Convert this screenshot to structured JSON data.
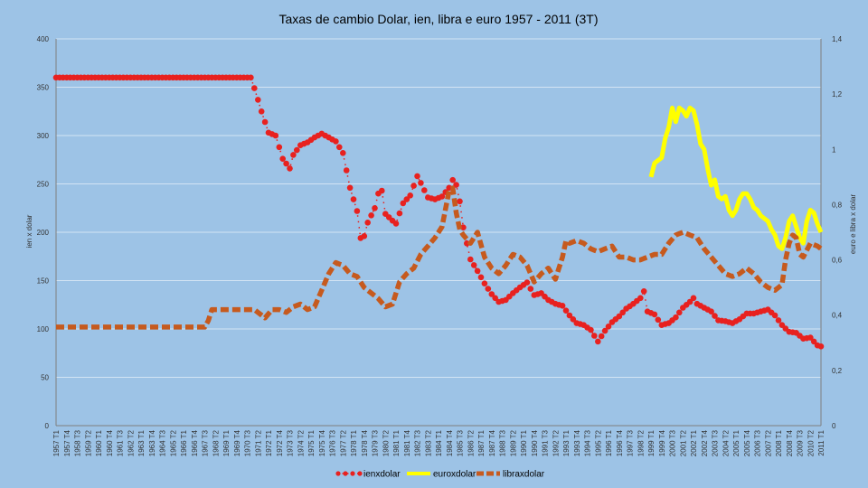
{
  "chart_data": {
    "type": "line",
    "title": "Taxas de cambio Dolar, ien, libra e euro 1957 - 2011 (3T)",
    "ylabel_left": "ien x dolar",
    "ylabel_right": "euro e libra x dolar",
    "ylim_left": [
      0,
      400
    ],
    "ylim_right": [
      0,
      1.4
    ],
    "yticks_left": [
      "0",
      "50",
      "100",
      "150",
      "200",
      "250",
      "300",
      "350",
      "400"
    ],
    "yticks_right": [
      "0",
      "0,2",
      "0,4",
      "0,6",
      "0,8",
      "1",
      "1,2",
      "1,4"
    ],
    "grid": "horizontal",
    "legend": "bottom",
    "x_start": "1957 T1",
    "x_end": "2011 T1",
    "x_label_every": 3,
    "series": [
      {
        "name": "ienxdolar",
        "axis": "left",
        "color": "#e8211f",
        "style": "dotted-markers",
        "points": [
          [
            "1957 T1",
            360
          ],
          [
            "1970 T4",
            360
          ],
          [
            "1971 T1",
            349
          ],
          [
            "1971 T3",
            325
          ],
          [
            "1972 T1",
            303
          ],
          [
            "1972 T3",
            300
          ],
          [
            "1973 T1",
            276
          ],
          [
            "1973 T3",
            266
          ],
          [
            "1973 T4",
            280
          ],
          [
            "1974 T2",
            290
          ],
          [
            "1974 T4",
            293
          ],
          [
            "1975 T2",
            298
          ],
          [
            "1975 T4",
            302
          ],
          [
            "1976 T2",
            298
          ],
          [
            "1976 T4",
            294
          ],
          [
            "1977 T2",
            282
          ],
          [
            "1977 T4",
            246
          ],
          [
            "1978 T2",
            222
          ],
          [
            "1978 T3",
            194
          ],
          [
            "1978 T4",
            196
          ],
          [
            "1979 T1",
            210
          ],
          [
            "1979 T3",
            225
          ],
          [
            "1979 T4",
            240
          ],
          [
            "1980 T1",
            243
          ],
          [
            "1980 T2",
            219
          ],
          [
            "1980 T4",
            212
          ],
          [
            "1981 T1",
            209
          ],
          [
            "1981 T3",
            230
          ],
          [
            "1982 T1",
            238
          ],
          [
            "1982 T3",
            258
          ],
          [
            "1982 T4",
            251
          ],
          [
            "1983 T2",
            236
          ],
          [
            "1983 T4",
            234
          ],
          [
            "1984 T2",
            237
          ],
          [
            "1984 T4",
            246
          ],
          [
            "1985 T1",
            254
          ],
          [
            "1985 T2",
            249
          ],
          [
            "1985 T3",
            232
          ],
          [
            "1985 T4",
            205
          ],
          [
            "1986 T2",
            172
          ],
          [
            "1986 T4",
            160
          ],
          [
            "1987 T2",
            147
          ],
          [
            "1987 T4",
            136
          ],
          [
            "1988 T2",
            128
          ],
          [
            "1988 T4",
            130
          ],
          [
            "1989 T2",
            137
          ],
          [
            "1989 T4",
            143
          ],
          [
            "1990 T2",
            148
          ],
          [
            "1990 T4",
            135
          ],
          [
            "1991 T2",
            137
          ],
          [
            "1991 T4",
            130
          ],
          [
            "1992 T2",
            126
          ],
          [
            "1992 T4",
            124
          ],
          [
            "1993 T2",
            114
          ],
          [
            "1993 T4",
            106
          ],
          [
            "1994 T2",
            104
          ],
          [
            "1994 T4",
            99
          ],
          [
            "1995 T2",
            87
          ],
          [
            "1995 T4",
            98
          ],
          [
            "1996 T2",
            107
          ],
          [
            "1996 T4",
            113
          ],
          [
            "1997 T2",
            121
          ],
          [
            "1997 T4",
            126
          ],
          [
            "1998 T2",
            132
          ],
          [
            "1998 T3",
            139
          ],
          [
            "1998 T4",
            118
          ],
          [
            "1999 T2",
            115
          ],
          [
            "1999 T4",
            104
          ],
          [
            "2000 T2",
            106
          ],
          [
            "2000 T4",
            112
          ],
          [
            "2001 T2",
            122
          ],
          [
            "2001 T4",
            128
          ],
          [
            "2002 T1",
            132
          ],
          [
            "2002 T2",
            126
          ],
          [
            "2002 T4",
            122
          ],
          [
            "2003 T2",
            118
          ],
          [
            "2003 T4",
            109
          ],
          [
            "2004 T2",
            108
          ],
          [
            "2004 T4",
            106
          ],
          [
            "2005 T2",
            110
          ],
          [
            "2005 T4",
            116
          ],
          [
            "2006 T2",
            116
          ],
          [
            "2006 T4",
            118
          ],
          [
            "2007 T2",
            120
          ],
          [
            "2007 T4",
            114
          ],
          [
            "2008 T2",
            104
          ],
          [
            "2008 T4",
            97
          ],
          [
            "2009 T2",
            96
          ],
          [
            "2009 T4",
            90
          ],
          [
            "2010 T2",
            91
          ],
          [
            "2010 T4",
            83
          ],
          [
            "2011 T1",
            82
          ]
        ]
      },
      {
        "name": "euroxdolar",
        "axis": "right",
        "color": "#ffff00",
        "style": "solid-thick",
        "points": [
          [
            "1999 T1",
            0.9
          ],
          [
            "1999 T2",
            0.95
          ],
          [
            "1999 T3",
            0.96
          ],
          [
            "1999 T4",
            0.97
          ],
          [
            "2000 T1",
            1.04
          ],
          [
            "2000 T2",
            1.08
          ],
          [
            "2000 T3",
            1.15
          ],
          [
            "2000 T4",
            1.1
          ],
          [
            "2001 T1",
            1.15
          ],
          [
            "2001 T2",
            1.14
          ],
          [
            "2001 T3",
            1.12
          ],
          [
            "2001 T4",
            1.15
          ],
          [
            "2002 T1",
            1.14
          ],
          [
            "2002 T2",
            1.09
          ],
          [
            "2002 T3",
            1.02
          ],
          [
            "2002 T4",
            1.0
          ],
          [
            "2003 T1",
            0.93
          ],
          [
            "2003 T2",
            0.87
          ],
          [
            "2003 T3",
            0.89
          ],
          [
            "2003 T4",
            0.83
          ],
          [
            "2004 T1",
            0.82
          ],
          [
            "2004 T2",
            0.83
          ],
          [
            "2004 T3",
            0.78
          ],
          [
            "2004 T4",
            0.76
          ],
          [
            "2005 T1",
            0.78
          ],
          [
            "2005 T2",
            0.82
          ],
          [
            "2005 T3",
            0.84
          ],
          [
            "2005 T4",
            0.84
          ],
          [
            "2006 T1",
            0.82
          ],
          [
            "2006 T2",
            0.79
          ],
          [
            "2006 T3",
            0.78
          ],
          [
            "2006 T4",
            0.76
          ],
          [
            "2007 T1",
            0.75
          ],
          [
            "2007 T2",
            0.74
          ],
          [
            "2007 T3",
            0.71
          ],
          [
            "2007 T4",
            0.69
          ],
          [
            "2008 T1",
            0.65
          ],
          [
            "2008 T2",
            0.64
          ],
          [
            "2008 T3",
            0.68
          ],
          [
            "2008 T4",
            0.74
          ],
          [
            "2009 T1",
            0.76
          ],
          [
            "2009 T2",
            0.72
          ],
          [
            "2009 T3",
            0.68
          ],
          [
            "2009 T4",
            0.66
          ],
          [
            "2010 T1",
            0.74
          ],
          [
            "2010 T2",
            0.78
          ],
          [
            "2010 T3",
            0.77
          ],
          [
            "2010 T4",
            0.73
          ],
          [
            "2011 T1",
            0.7
          ]
        ]
      },
      {
        "name": "libraxdolar",
        "axis": "right",
        "color": "#c65a1e",
        "style": "dashed-thick",
        "points": [
          [
            "1957 T1",
            0.357
          ],
          [
            "1967 T3",
            0.357
          ],
          [
            "1967 T4",
            0.38
          ],
          [
            "1968 T1",
            0.42
          ],
          [
            "1971 T1",
            0.42
          ],
          [
            "1971 T2",
            0.41
          ],
          [
            "1971 T4",
            0.39
          ],
          [
            "1972 T2",
            0.42
          ],
          [
            "1972 T4",
            0.42
          ],
          [
            "1973 T2",
            0.41
          ],
          [
            "1973 T4",
            0.43
          ],
          [
            "1974 T2",
            0.44
          ],
          [
            "1974 T4",
            0.42
          ],
          [
            "1975 T2",
            0.43
          ],
          [
            "1975 T4",
            0.49
          ],
          [
            "1976 T2",
            0.55
          ],
          [
            "1976 T4",
            0.59
          ],
          [
            "1977 T2",
            0.58
          ],
          [
            "1977 T4",
            0.55
          ],
          [
            "1978 T2",
            0.54
          ],
          [
            "1978 T4",
            0.5
          ],
          [
            "1979 T2",
            0.48
          ],
          [
            "1979 T4",
            0.46
          ],
          [
            "1980 T2",
            0.43
          ],
          [
            "1980 T4",
            0.44
          ],
          [
            "1981 T2",
            0.52
          ],
          [
            "1981 T4",
            0.55
          ],
          [
            "1982 T2",
            0.57
          ],
          [
            "1982 T4",
            0.62
          ],
          [
            "1983 T2",
            0.65
          ],
          [
            "1983 T4",
            0.68
          ],
          [
            "1984 T2",
            0.72
          ],
          [
            "1984 T4",
            0.85
          ],
          [
            "1985 T1",
            0.86
          ],
          [
            "1985 T2",
            0.77
          ],
          [
            "1985 T3",
            0.71
          ],
          [
            "1985 T4",
            0.69
          ],
          [
            "1986 T2",
            0.66
          ],
          [
            "1986 T4",
            0.7
          ],
          [
            "1987 T2",
            0.61
          ],
          [
            "1987 T4",
            0.57
          ],
          [
            "1988 T2",
            0.55
          ],
          [
            "1988 T4",
            0.58
          ],
          [
            "1989 T2",
            0.62
          ],
          [
            "1989 T4",
            0.61
          ],
          [
            "1990 T2",
            0.58
          ],
          [
            "1990 T4",
            0.52
          ],
          [
            "1991 T2",
            0.55
          ],
          [
            "1991 T4",
            0.57
          ],
          [
            "1992 T2",
            0.53
          ],
          [
            "1992 T4",
            0.61
          ],
          [
            "1993 T1",
            0.67
          ],
          [
            "1993 T2",
            0.66
          ],
          [
            "1993 T4",
            0.67
          ],
          [
            "1994 T2",
            0.66
          ],
          [
            "1994 T4",
            0.64
          ],
          [
            "1995 T2",
            0.63
          ],
          [
            "1995 T4",
            0.64
          ],
          [
            "1996 T2",
            0.65
          ],
          [
            "1996 T4",
            0.61
          ],
          [
            "1997 T2",
            0.61
          ],
          [
            "1997 T4",
            0.6
          ],
          [
            "1998 T2",
            0.6
          ],
          [
            "1998 T4",
            0.61
          ],
          [
            "1999 T2",
            0.62
          ],
          [
            "1999 T4",
            0.62
          ],
          [
            "2000 T2",
            0.66
          ],
          [
            "2000 T4",
            0.69
          ],
          [
            "2001 T2",
            0.7
          ],
          [
            "2001 T4",
            0.69
          ],
          [
            "2002 T2",
            0.68
          ],
          [
            "2002 T4",
            0.64
          ],
          [
            "2003 T2",
            0.61
          ],
          [
            "2003 T4",
            0.58
          ],
          [
            "2004 T2",
            0.55
          ],
          [
            "2004 T4",
            0.54
          ],
          [
            "2005 T2",
            0.55
          ],
          [
            "2005 T4",
            0.57
          ],
          [
            "2006 T2",
            0.55
          ],
          [
            "2006 T4",
            0.52
          ],
          [
            "2007 T2",
            0.5
          ],
          [
            "2007 T4",
            0.49
          ],
          [
            "2008 T2",
            0.51
          ],
          [
            "2008 T3",
            0.6
          ],
          [
            "2008 T4",
            0.66
          ],
          [
            "2009 T1",
            0.69
          ],
          [
            "2009 T2",
            0.68
          ],
          [
            "2009 T3",
            0.62
          ],
          [
            "2009 T4",
            0.61
          ],
          [
            "2010 T2",
            0.66
          ],
          [
            "2010 T4",
            0.65
          ],
          [
            "2011 T1",
            0.64
          ]
        ]
      }
    ]
  }
}
